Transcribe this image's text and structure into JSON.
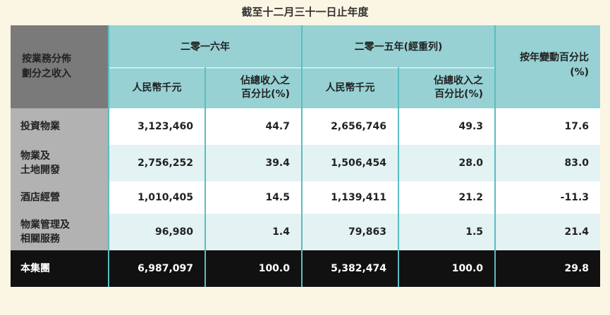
{
  "caption": "截至十二月三十一日止年度",
  "header": {
    "row_label_line1": "按業務分佈",
    "row_label_line2": "劃分之收入",
    "group_2016": "二零一六年",
    "group_2015": "二零一五年(經重列)",
    "change_line1": "按年變動百分比",
    "change_line2": "(%)",
    "col_rmb": "人民幣千元",
    "col_pct_line1": "佔總收入之",
    "col_pct_line2": "百分比(%)"
  },
  "rows": [
    {
      "label1": "投資物業",
      "label2": "",
      "v2016": "3,123,460",
      "p2016": "44.7",
      "v2015": "2,656,746",
      "p2015": "49.3",
      "chg": "17.6"
    },
    {
      "label1": "物業及",
      "label2": "土地開發",
      "v2016": "2,756,252",
      "p2016": "39.4",
      "v2015": "1,506,454",
      "p2015": "28.0",
      "chg": "83.0"
    },
    {
      "label1": "酒店經營",
      "label2": "",
      "v2016": "1,010,405",
      "p2016": "14.5",
      "v2015": "1,139,411",
      "p2015": "21.2",
      "chg": "-11.3"
    },
    {
      "label1": "物業管理及",
      "label2": "相關服務",
      "v2016": "96,980",
      "p2016": "1.4",
      "v2015": "79,863",
      "p2015": "1.5",
      "chg": "21.4"
    }
  ],
  "total": {
    "label": "本集團",
    "v2016": "6,987,097",
    "p2016": "100.0",
    "v2015": "5,382,474",
    "p2015": "100.0",
    "chg": "29.8"
  },
  "colors": {
    "header_teal": "#97d1d3",
    "row_tint": "#e3f2f2",
    "total_bg": "#111111",
    "label_grey": "#b2b2b2",
    "page_bg": "#fbf5e4"
  }
}
